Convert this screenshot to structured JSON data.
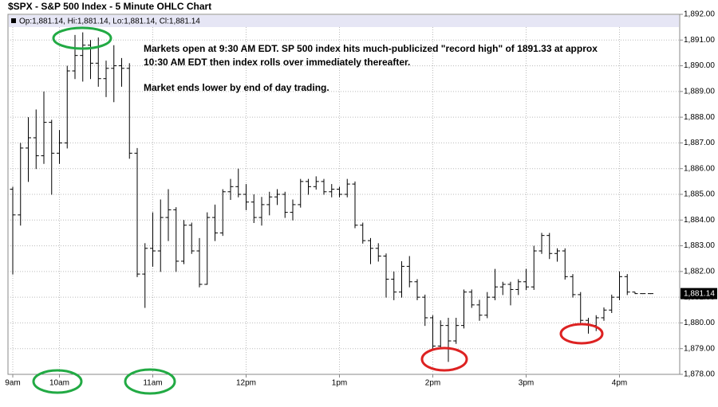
{
  "chart_data": {
    "type": "ohlc",
    "title": "$SPX - S&P 500 Index - 5 Minute OHLC Chart",
    "header": "Op:1,881.14, Hi:1,881.14, Lo:1,881.14, Cl:1,881.14",
    "annotations": [
      "Markets open at 9:30 AM EDT.    SP 500 index hits much-publicized \"record high\" of 1891.33 at approx",
      "10:30 AM EDT then index rolls over immediately thereafter.",
      "Market ends lower by end of day trading."
    ],
    "last_price": {
      "value": 1881.14,
      "label": "1,881.14"
    },
    "categories": [
      "9am",
      null,
      null,
      null,
      null,
      null,
      "10am",
      null,
      null,
      null,
      null,
      null,
      null,
      null,
      null,
      null,
      null,
      null,
      "11am",
      null,
      null,
      null,
      null,
      null,
      null,
      null,
      null,
      null,
      null,
      null,
      "12pm",
      null,
      null,
      null,
      null,
      null,
      null,
      null,
      null,
      null,
      null,
      null,
      "1pm",
      null,
      null,
      null,
      null,
      null,
      null,
      null,
      null,
      null,
      null,
      null,
      "2pm",
      null,
      null,
      null,
      null,
      null,
      null,
      null,
      null,
      null,
      null,
      null,
      "3pm",
      null,
      null,
      null,
      null,
      null,
      null,
      null,
      null,
      null,
      null,
      null,
      "4pm",
      null,
      null,
      null,
      null
    ],
    "series": [
      {
        "name": "$SPX",
        "color": "#000000",
        "open": [
          1885.2,
          1884.2,
          1886.8,
          1887.2,
          1886.5,
          1887.8,
          1886.6,
          1887.0,
          1889.8,
          1890.4,
          1890.8,
          1890.1,
          1889.5,
          1889.9,
          1890.0,
          1889.9,
          1886.6,
          1881.9,
          1882.9,
          1882.8,
          1884.1,
          1884.4,
          1882.4,
          1883.8,
          1882.8,
          1881.5,
          1884.1,
          1883.5,
          1885.1,
          1885.3,
          1885.0,
          1884.7,
          1884.1,
          1884.6,
          1884.9,
          1885.0,
          1884.3,
          1884.6,
          1885.5,
          1885.3,
          1885.5,
          1885.1,
          1885.2,
          1885.0,
          1885.4,
          1883.8,
          1883.2,
          1882.9,
          1882.6,
          1881.7,
          1881.2,
          1882.2,
          1881.6,
          1881.0,
          1880.2,
          1879.1,
          1879.9,
          1879.3,
          1879.9,
          1881.2,
          1880.7,
          1880.3,
          1881.0,
          1881.4,
          1881.5,
          1881.3,
          1881.6,
          1881.4,
          1882.8,
          1883.4,
          1882.7,
          1882.8,
          1881.8,
          1881.1,
          1880.1,
          1879.9,
          1880.2,
          1880.5,
          1881.0,
          1881.8,
          1881.2,
          1881.14,
          1881.14
        ],
        "high": [
          1885.3,
          1887.0,
          1888.0,
          1888.3,
          1889.0,
          1887.9,
          1887.5,
          1890.0,
          1891.2,
          1891.3,
          1891.0,
          1891.1,
          1890.2,
          1890.8,
          1890.3,
          1890.1,
          1886.8,
          1883.1,
          1884.3,
          1884.8,
          1885.2,
          1884.5,
          1884.0,
          1883.9,
          1883.3,
          1884.3,
          1884.6,
          1885.2,
          1885.6,
          1886.0,
          1885.4,
          1885.0,
          1884.9,
          1885.1,
          1885.2,
          1885.1,
          1884.8,
          1885.6,
          1885.6,
          1885.7,
          1885.6,
          1885.4,
          1885.3,
          1885.6,
          1885.5,
          1883.9,
          1883.3,
          1883.1,
          1882.7,
          1882.0,
          1882.4,
          1882.6,
          1881.7,
          1881.1,
          1880.3,
          1880.1,
          1880.2,
          1880.2,
          1881.3,
          1881.3,
          1880.9,
          1881.2,
          1882.1,
          1881.6,
          1881.6,
          1881.7,
          1882.1,
          1883.0,
          1883.5,
          1883.5,
          1882.9,
          1882.9,
          1881.9,
          1881.2,
          1880.2,
          1880.3,
          1880.6,
          1881.1,
          1882.0,
          1881.9,
          1881.2,
          1881.14,
          1881.14
        ],
        "low": [
          1881.9,
          1883.8,
          1885.5,
          1886.0,
          1886.2,
          1885.0,
          1886.2,
          1886.8,
          1889.5,
          1889.4,
          1889.5,
          1889.2,
          1888.8,
          1888.6,
          1889.2,
          1886.4,
          1881.8,
          1880.6,
          1882.2,
          1882.0,
          1883.2,
          1882.0,
          1882.3,
          1882.7,
          1881.4,
          1881.5,
          1883.2,
          1883.4,
          1884.8,
          1884.9,
          1884.4,
          1883.9,
          1883.8,
          1884.2,
          1884.6,
          1884.1,
          1884.0,
          1884.5,
          1885.0,
          1885.2,
          1885.0,
          1884.9,
          1884.9,
          1884.9,
          1883.7,
          1883.1,
          1882.3,
          1882.4,
          1881.0,
          1880.9,
          1881.0,
          1881.4,
          1880.9,
          1879.9,
          1879.0,
          1879.0,
          1878.5,
          1879.2,
          1879.8,
          1880.6,
          1880.1,
          1880.2,
          1880.9,
          1881.1,
          1880.7,
          1881.1,
          1881.3,
          1881.3,
          1882.7,
          1882.5,
          1882.4,
          1881.7,
          1881.0,
          1880.0,
          1879.6,
          1879.7,
          1880.1,
          1880.4,
          1880.9,
          1881.1,
          1881.14,
          1881.14,
          1881.14
        ],
        "close": [
          1884.2,
          1886.8,
          1887.2,
          1886.5,
          1887.8,
          1886.6,
          1887.0,
          1889.8,
          1890.4,
          1890.8,
          1890.1,
          1889.5,
          1889.9,
          1890.0,
          1889.9,
          1886.6,
          1881.9,
          1882.9,
          1882.8,
          1884.1,
          1884.4,
          1882.4,
          1883.8,
          1882.8,
          1881.5,
          1884.1,
          1883.5,
          1885.1,
          1885.3,
          1885.0,
          1884.7,
          1884.1,
          1884.6,
          1884.9,
          1885.0,
          1884.3,
          1884.6,
          1885.5,
          1885.3,
          1885.5,
          1885.1,
          1885.2,
          1885.0,
          1885.4,
          1883.8,
          1883.2,
          1882.9,
          1882.6,
          1881.7,
          1881.2,
          1882.2,
          1881.6,
          1881.0,
          1880.2,
          1879.1,
          1879.9,
          1879.3,
          1879.9,
          1881.2,
          1880.7,
          1880.3,
          1881.0,
          1881.4,
          1881.5,
          1881.3,
          1881.6,
          1881.4,
          1882.8,
          1883.4,
          1882.7,
          1882.8,
          1881.8,
          1881.1,
          1880.1,
          1879.9,
          1880.2,
          1880.5,
          1881.0,
          1881.8,
          1881.2,
          1881.14,
          1881.14,
          1881.14
        ]
      }
    ],
    "ylim": [
      1878,
      1892
    ],
    "yticks": [
      {
        "value": 1878,
        "label": "1,878.00"
      },
      {
        "value": 1879,
        "label": "1,879.00"
      },
      {
        "value": 1880,
        "label": "1,880.00"
      },
      {
        "value": 1881,
        "label": "1,881.00"
      },
      {
        "value": 1882,
        "label": "1,882.00"
      },
      {
        "value": 1883,
        "label": "1,883.00"
      },
      {
        "value": 1884,
        "label": "1,884.00"
      },
      {
        "value": 1885,
        "label": "1,885.00"
      },
      {
        "value": 1886,
        "label": "1,886.00"
      },
      {
        "value": 1887,
        "label": "1,887.00"
      },
      {
        "value": 1888,
        "label": "1,888.00"
      },
      {
        "value": 1889,
        "label": "1,889.00"
      },
      {
        "value": 1890,
        "label": "1,890.00"
      },
      {
        "value": 1891,
        "label": "1,891.00"
      },
      {
        "value": 1892,
        "label": "1,892.00"
      }
    ],
    "grid": true
  }
}
